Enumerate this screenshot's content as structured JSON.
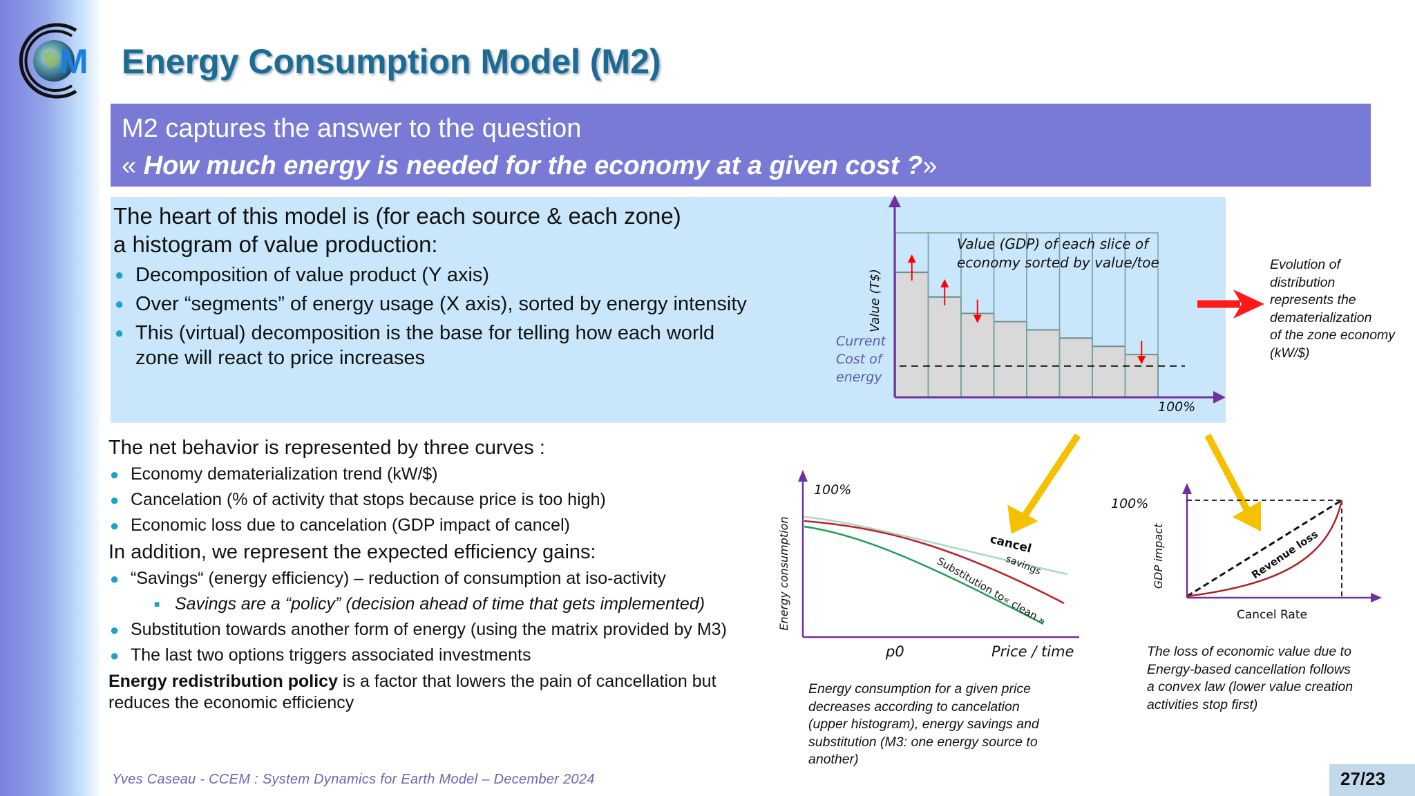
{
  "logo": {
    "letter": "M",
    "icon": "globe-logo-icon"
  },
  "title": "Energy Consumption Model (M2)",
  "question": {
    "line1": "M2 captures the answer to the question",
    "line2_open": "« ",
    "line2_bold": "How much energy is needed for the economy at a given cost ?",
    "line2_close": "»"
  },
  "heart": {
    "lead_line1": "The heart of this model is (for each source & each zone)",
    "lead_line2": "a histogram of value production:",
    "bullets": [
      "Decomposition of value product (Y axis)",
      "Over “segments” of energy usage (X axis), sorted by energy intensity",
      "This (virtual) decomposition is the base for telling how each world zone will react to price increases"
    ]
  },
  "histogram": {
    "y_label": "Value (T$)",
    "annotation_line1": "Value (GDP) of each slice of",
    "annotation_line2": "economy sorted by value/toe",
    "cost_line1": "Current",
    "cost_line2": "Cost of",
    "cost_line3": "energy",
    "x_end_label": "100%",
    "bar_values": [
      0.76,
      0.61,
      0.51,
      0.46,
      0.41,
      0.36,
      0.31,
      0.26
    ],
    "outline_value": 1.0,
    "cost_level": 0.19,
    "arrows": [
      {
        "bar": 0,
        "direction": "up"
      },
      {
        "bar": 1,
        "direction": "up"
      },
      {
        "bar": 2,
        "direction": "down"
      },
      {
        "bar": 7,
        "direction": "down"
      }
    ],
    "bar_color": "#d9d9d9",
    "arrow_color": "#ff0000"
  },
  "evolution": {
    "lines": [
      "Evolution of",
      "distribution",
      "represents the",
      "dematerialization",
      "of the zone economy",
      "(kW/$)"
    ]
  },
  "net": {
    "heading": "The net behavior is represented by three curves :",
    "bullets": [
      "Economy dematerialization trend (kW/$)",
      "Cancelation (% of activity that stops because price is too high)",
      "Economic loss due to cancelation (GDP impact of cancel)"
    ],
    "addition": "In addition, we represent the expected efficiency gains:",
    "bullets2": [
      "“Savings“ (energy efficiency) – reduction of consumption at iso-activity"
    ],
    "sub_bullet": "Savings are a “policy” (decision ahead of time that gets implemented)",
    "bullets3": [
      "Substitution towards another form of energy (using the matrix provided by M3)",
      "The last two options triggers associated investments"
    ],
    "closing_bold": "Energy redistribution policy",
    "closing_rest": " is a factor that lowers the pain of cancellation but reduces the economic efficiency"
  },
  "curve1": {
    "y_label": "Energy consumption",
    "y_top": "100%",
    "x_p0": "p0",
    "x_label": "Price / time",
    "cancel": "cancel",
    "savings": "savings",
    "substitution": "Substitution to« clean »",
    "caption": [
      "Energy consumption for a given price",
      "decreases according to cancelation",
      "(upper histogram), energy savings and",
      "substitution (M3: one energy source to",
      "another)"
    ],
    "colors": {
      "cancel": "#c0202a",
      "savings": "#a8d8c8",
      "substitution": "#1aa050"
    }
  },
  "curve2": {
    "y_top": "100%",
    "y_label": "GDP impact",
    "x_label": "Cancel Rate",
    "revenue": "Revenue loss",
    "caption": [
      "The loss of economic value due to",
      "Energy-based cancellation follows",
      "a convex law (lower value creation",
      "activities stop first)"
    ],
    "curve_color": "#b02020"
  },
  "colors": {
    "axis": "#7030a0",
    "yellow_arrow": "#f5c000",
    "red_arrow": "#ff1a1a",
    "title": "#1d6b93",
    "question_bg": "#7979d6",
    "box_bg": "#c9e6fb"
  },
  "footer": "Yves Caseau  - CCEM : System Dynamics for Earth Model – December 2024",
  "page": "27/23"
}
